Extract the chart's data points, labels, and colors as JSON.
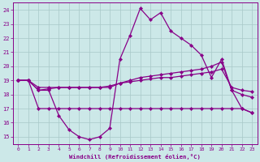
{
  "xlabel": "Windchill (Refroidissement éolien,°C)",
  "background_color": "#cce8e8",
  "grid_color": "#a8c8c8",
  "line_color": "#880088",
  "x_ticks": [
    0,
    1,
    2,
    3,
    4,
    5,
    6,
    7,
    8,
    9,
    10,
    11,
    12,
    13,
    14,
    15,
    16,
    17,
    18,
    19,
    20,
    21,
    22,
    23
  ],
  "ylim": [
    14.5,
    24.5
  ],
  "yticks": [
    15,
    16,
    17,
    18,
    19,
    20,
    21,
    22,
    23,
    24
  ],
  "line1_x": [
    0,
    1,
    2,
    3,
    4,
    5,
    6,
    7,
    8,
    9,
    10,
    11,
    12,
    13,
    14,
    15,
    16,
    17,
    18,
    19,
    20,
    21,
    22,
    23
  ],
  "line1_y": [
    19.0,
    19.0,
    18.3,
    18.3,
    16.5,
    15.5,
    15.0,
    14.8,
    15.0,
    15.6,
    20.5,
    22.2,
    24.1,
    23.3,
    23.8,
    22.5,
    22.0,
    21.5,
    20.8,
    19.2,
    20.5,
    18.3,
    17.0,
    16.7
  ],
  "line2_x": [
    0,
    1,
    2,
    3,
    4,
    5,
    6,
    7,
    8,
    9,
    10,
    11,
    12,
    13,
    14,
    15,
    16,
    17,
    18,
    19,
    20,
    21,
    22,
    23
  ],
  "line2_y": [
    19.0,
    19.0,
    18.5,
    18.5,
    18.5,
    18.5,
    18.5,
    18.5,
    18.5,
    18.5,
    18.8,
    19.0,
    19.2,
    19.3,
    19.4,
    19.5,
    19.6,
    19.7,
    19.8,
    20.0,
    20.3,
    18.3,
    18.0,
    17.8
  ],
  "line3_x": [
    0,
    1,
    2,
    3,
    4,
    5,
    6,
    7,
    8,
    9,
    10,
    11,
    12,
    13,
    14,
    15,
    16,
    17,
    18,
    19,
    20,
    21,
    22,
    23
  ],
  "line3_y": [
    19.0,
    19.0,
    17.0,
    17.0,
    17.0,
    17.0,
    17.0,
    17.0,
    17.0,
    17.0,
    17.0,
    17.0,
    17.0,
    17.0,
    17.0,
    17.0,
    17.0,
    17.0,
    17.0,
    17.0,
    17.0,
    17.0,
    17.0,
    16.7
  ],
  "line4_x": [
    0,
    1,
    2,
    3,
    4,
    5,
    6,
    7,
    8,
    9,
    10,
    11,
    12,
    13,
    14,
    15,
    16,
    17,
    18,
    19,
    20,
    21,
    22,
    23
  ],
  "line4_y": [
    19.0,
    19.0,
    18.3,
    18.4,
    18.5,
    18.5,
    18.5,
    18.5,
    18.5,
    18.6,
    18.8,
    18.9,
    19.0,
    19.1,
    19.2,
    19.2,
    19.3,
    19.4,
    19.5,
    19.6,
    19.8,
    18.5,
    18.3,
    18.2
  ]
}
